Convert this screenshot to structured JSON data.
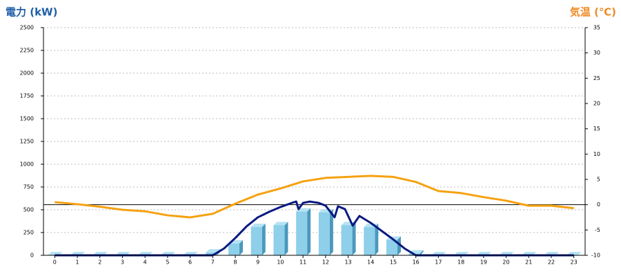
{
  "chart_data": {
    "type": "combo",
    "title": "電力 (kW)",
    "title_color": "#1f5fa8",
    "y2_title": "気温 (℃)",
    "y2_title_color": "#f08a24",
    "categories": [
      "0",
      "1",
      "2",
      "3",
      "4",
      "5",
      "6",
      "7",
      "8",
      "9",
      "10",
      "11",
      "12",
      "13",
      "14",
      "15",
      "16",
      "17",
      "18",
      "19",
      "20",
      "21",
      "22",
      "23"
    ],
    "ylim": [
      0,
      2500
    ],
    "yticks": [
      0,
      250,
      500,
      750,
      1000,
      1250,
      1500,
      1750,
      2000,
      2250,
      2500
    ],
    "y2lim": [
      -10,
      35
    ],
    "y2ticks": [
      -10,
      -5,
      0,
      5,
      10,
      15,
      20,
      25,
      30,
      35
    ],
    "grid": true,
    "y2_zero_line": true,
    "series": [
      {
        "type": "bar",
        "color": "#8ecfea",
        "values": [
          0,
          0,
          0,
          0,
          0,
          0,
          0,
          30,
          130,
          310,
          330,
          480,
          470,
          330,
          310,
          170,
          20,
          0,
          0,
          0,
          0,
          0,
          0,
          0
        ]
      },
      {
        "type": "line",
        "color": "#0a1a80",
        "x": [
          0,
          1,
          2,
          3,
          4,
          5,
          6,
          7,
          7.5,
          8,
          8.5,
          9,
          9.5,
          10,
          10.5,
          10.7,
          10.8,
          11,
          11.3,
          11.7,
          12,
          12.4,
          12.55,
          12.86,
          13.2,
          13.5,
          14,
          14.5,
          15,
          15.5,
          16,
          17,
          18,
          19,
          20,
          21,
          22,
          23
        ],
        "values": [
          0,
          0,
          0,
          0,
          0,
          0,
          0,
          0,
          75,
          190,
          318,
          417,
          477,
          530,
          575,
          590,
          507,
          575,
          590,
          575,
          545,
          417,
          538,
          507,
          326,
          432,
          356,
          265,
          174,
          75,
          0,
          0,
          0,
          0,
          0,
          0,
          0,
          0
        ]
      },
      {
        "type": "line",
        "axis": "y2",
        "color": "#f5a10f",
        "values": [
          0.5,
          0.1,
          -0.4,
          -1,
          -1.3,
          -2.1,
          -2.5,
          -1.8,
          0.2,
          2,
          3.2,
          4.6,
          5.3,
          5.5,
          5.7,
          5.5,
          4.5,
          2.7,
          2.3,
          1.5,
          0.8,
          -0.2,
          -0.2,
          -0.7
        ]
      }
    ]
  }
}
